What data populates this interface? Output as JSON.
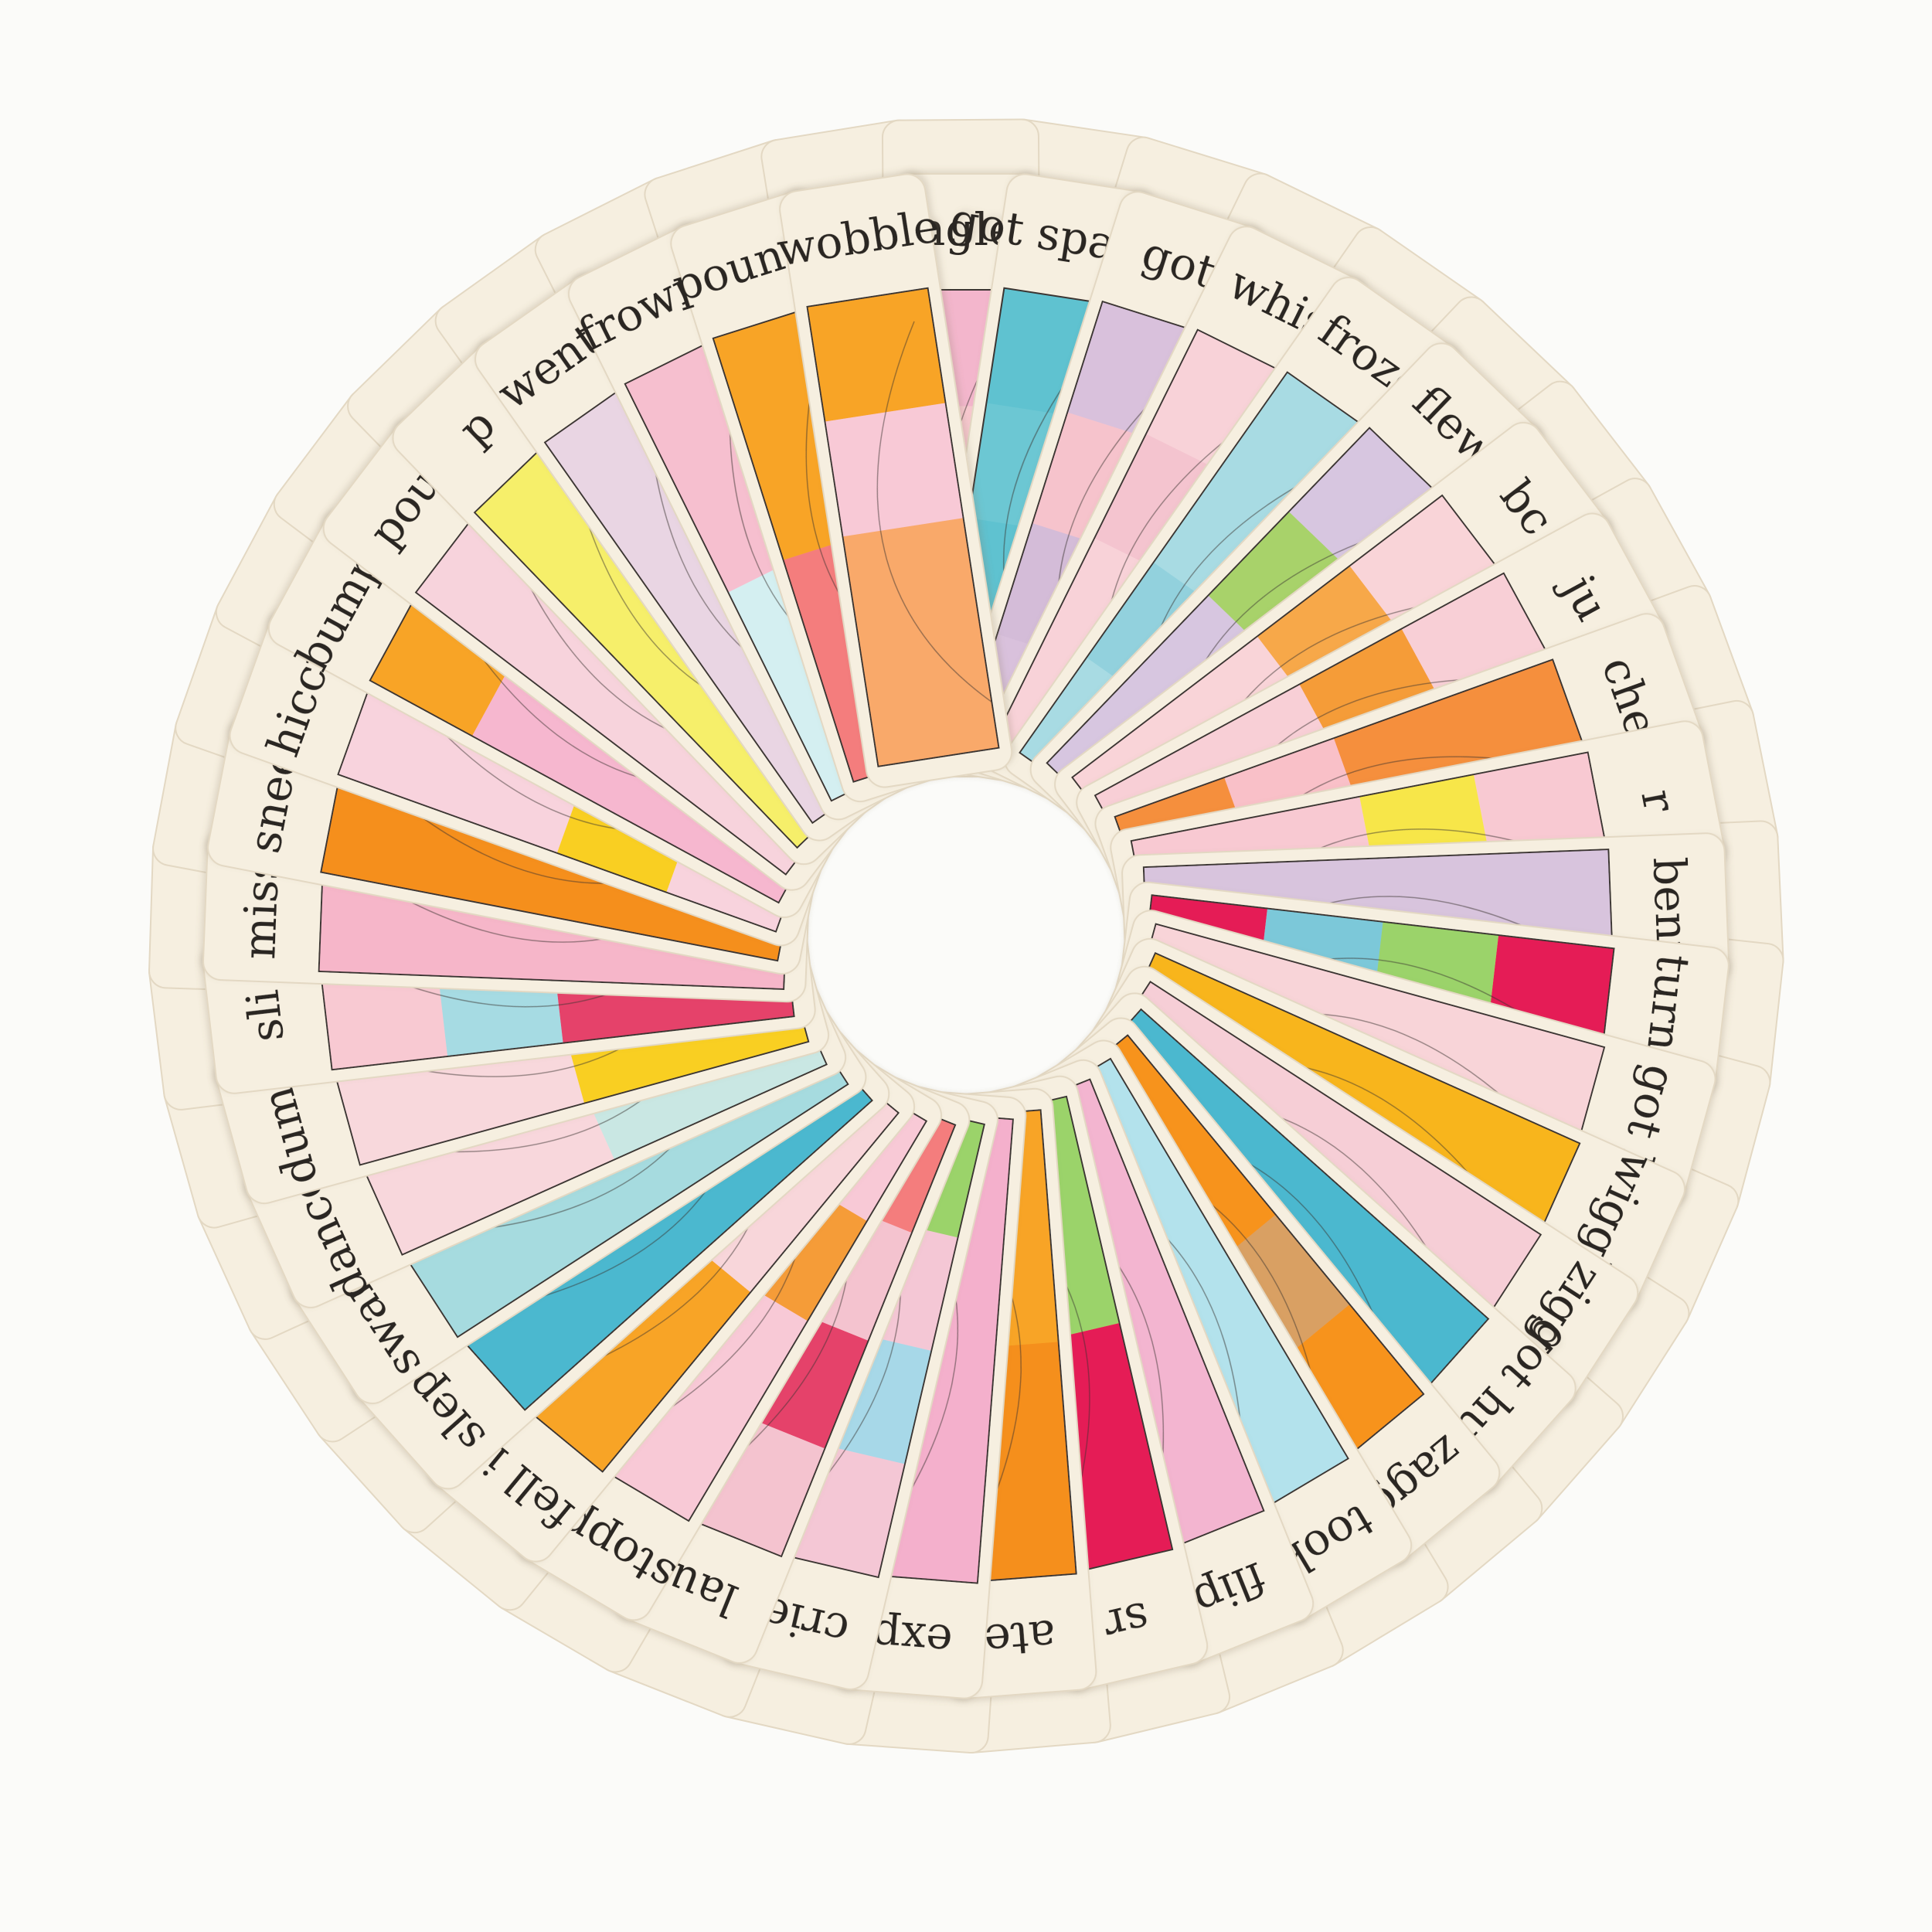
{
  "scene": {
    "background_color": "#fbfbf9",
    "card_color": "#f6efe0",
    "card_edge_color": "#e3d8c3"
  },
  "cards": [
    {
      "word": "jingled",
      "colors": [
        "#f8c9d0",
        "#f2b0c4",
        "#f8c9d0",
        "#f3b6cc"
      ]
    },
    {
      "word": "got  spanke",
      "colors": [
        "#5fc2d0",
        "#5fc2d0",
        "#6cc7d3",
        "#5fc2d0"
      ]
    },
    {
      "word": "got",
      "colors": [
        "#d9c1dc",
        "#d4bcd8",
        "#f6c3cc",
        "#d9c1dc"
      ]
    },
    {
      "word": "whis",
      "colors": [
        "#f8d2d8",
        "#f8d2d8",
        "#f4c4cf",
        "#f8d2d8"
      ]
    },
    {
      "word": "froze",
      "colors": [
        "#a8dbe3",
        "#92d1dd",
        "#a8dbe3",
        "#a8dbe3"
      ]
    },
    {
      "word": "flew",
      "colors": [
        "#d7c6e0",
        "#d7c6e0",
        "#a8d26b",
        "#d7c6e0"
      ]
    },
    {
      "word": "bc",
      "colors": [
        "#f9d4d8",
        "#f9d4d8",
        "#f7a84a",
        "#f9d4d8"
      ]
    },
    {
      "word": "ju",
      "colors": [
        "#f8cfd6",
        "#f8cfd6",
        "#f59c39",
        "#f8cfd6"
      ]
    },
    {
      "word": "che",
      "colors": [
        "#f58f3c",
        "#f9c0c8",
        "#f58f3c",
        "#f58f3c"
      ]
    },
    {
      "word": "r",
      "colors": [
        "#f8c9d2",
        "#f8c9d2",
        "#f7e64a",
        "#f8c9d2"
      ]
    },
    {
      "word": "bent",
      "colors": [
        "#d8c4dd",
        "#d8c4dd",
        "#d8c4dd",
        "#d8c4dd"
      ]
    },
    {
      "word": "turne",
      "colors": [
        "#e51b57",
        "#7cc8d9",
        "#9bd36a",
        "#e51b57"
      ]
    },
    {
      "word": "got k",
      "colors": [
        "#f8d4d8",
        "#f8d4d8",
        "#f8d4d8",
        "#f8d4d8"
      ]
    },
    {
      "word": "wiggle",
      "colors": [
        "#f8b51c",
        "#f8b51c",
        "#f8b51c",
        "#f8b51c"
      ]
    },
    {
      "word": "zigge",
      "colors": [
        "#f6ced6",
        "#f6ced6",
        "#f6ced6",
        "#f6ced6"
      ]
    },
    {
      "word": "got hugg",
      "colors": [
        "#4bb8cf",
        "#4bb8cf",
        "#4bb8cf",
        "#4bb8cf"
      ]
    },
    {
      "word": "zagg",
      "colors": [
        "#f7931e",
        "#f7931e",
        "#d9a064",
        "#f7931e"
      ]
    },
    {
      "word": "took",
      "colors": [
        "#b3e2ec",
        "#b3e2ec",
        "#b3e2ec",
        "#b3e2ec"
      ]
    },
    {
      "word": "flip",
      "colors": [
        "#f3b5d0",
        "#f3b5d0",
        "#f3b5d0",
        "#f3b5d0"
      ]
    },
    {
      "word": "sr",
      "colors": [
        "#9bd36a",
        "#9bd36a",
        "#e51b57",
        "#e51b57"
      ]
    },
    {
      "word": "ate",
      "colors": [
        "#f8a426",
        "#f8a426",
        "#f58f1f",
        "#f58f1f"
      ]
    },
    {
      "word": "exp",
      "colors": [
        "#f4b0cc",
        "#f4b0cc",
        "#f4b0cc",
        "#f4b0cc"
      ]
    },
    {
      "word": "crie",
      "colors": [
        "#9bd36a",
        "#f4c7d5",
        "#a7d8e8",
        "#f4c7d5"
      ]
    },
    {
      "word": "lau",
      "colors": [
        "#f47d7d",
        "#f4c3cf",
        "#e5436b",
        "#f4c3cf"
      ]
    },
    {
      "word": "stoppe",
      "colors": [
        "#f8c9d6",
        "#f59c39",
        "#f8c9d6",
        "#f8c9d6"
      ]
    },
    {
      "word": "fell in",
      "colors": [
        "#f8d6da",
        "#f8d6da",
        "#f8a426",
        "#f8a426"
      ]
    },
    {
      "word": "slept",
      "colors": [
        "#4bb8cf",
        "#4bb8cf",
        "#4bb8cf",
        "#4bb8cf"
      ]
    },
    {
      "word": "swam",
      "colors": [
        "#a6dbdf",
        "#a6dbdf",
        "#a6dbdf",
        "#a6dbdf"
      ]
    },
    {
      "word": "danced",
      "colors": [
        "#c9e7e3",
        "#c9e7e3",
        "#f8d7dc",
        "#f8d7dc"
      ]
    },
    {
      "word": "dump",
      "colors": [
        "#f9cf24",
        "#f9cf24",
        "#f8d8dc",
        "#f8d8dc"
      ]
    },
    {
      "word": "sli",
      "colors": [
        "#e5436b",
        "#e5436b",
        "#a6dbe3",
        "#f8c9d2"
      ]
    },
    {
      "word": "miss",
      "colors": [
        "#f6b6c9",
        "#f6b6c9",
        "#f6b6c9",
        "#f6b6c9"
      ]
    },
    {
      "word": "snee",
      "colors": [
        "#f58f1f",
        "#f58f1f",
        "#f58f1f",
        "#f58f1f"
      ]
    },
    {
      "word": "hiccu",
      "colors": [
        "#f8d3dd",
        "#f9cf24",
        "#f8d3dd",
        "#f8d3dd"
      ]
    },
    {
      "word": "bumpe",
      "colors": [
        "#f6b7cf",
        "#f6b7cf",
        "#f6b7cf",
        "#f8a426"
      ]
    },
    {
      "word": "pou",
      "colors": [
        "#f7d3dc",
        "#f7d3dc",
        "#f7d3dc",
        "#f7d3dc"
      ]
    },
    {
      "word": "p",
      "colors": [
        "#f6ef6a",
        "#f6ef6a",
        "#f6ef6a",
        "#f6ef6a"
      ]
    },
    {
      "word": "went l",
      "colors": [
        "#e9d5e3",
        "#e9d5e3",
        "#e9d5e3",
        "#e9d5e3"
      ]
    },
    {
      "word": "frowne",
      "colors": [
        "#d4eff1",
        "#d4eff1",
        "#f6bfcf",
        "#f6bfcf"
      ]
    },
    {
      "word": "pounce",
      "colors": [
        "#f47d7d",
        "#f47d7d",
        "#f8a426",
        "#f8a426"
      ]
    },
    {
      "word": "wobble",
      "colors": [
        "#f9a96b",
        "#f9a96b",
        "#f8c9d6",
        "#f8a426"
      ]
    }
  ]
}
